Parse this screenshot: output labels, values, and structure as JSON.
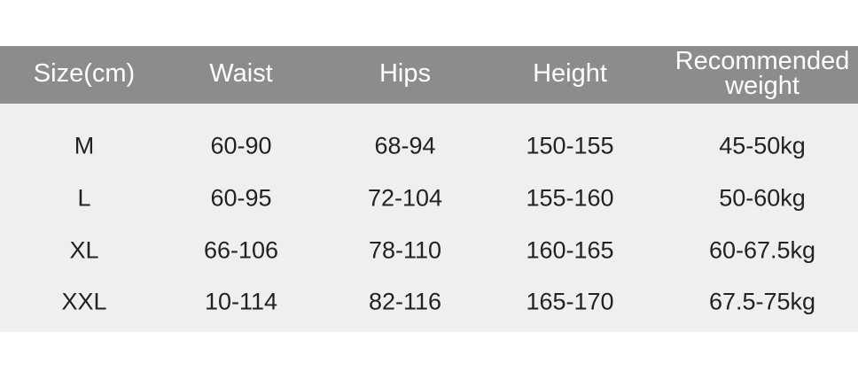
{
  "table": {
    "columns": [
      "Size(cm)",
      "Waist",
      "Hips",
      "Height",
      "Recommended weight"
    ],
    "rows": [
      [
        "M",
        "60-90",
        "68-94",
        "150-155",
        "45-50kg"
      ],
      [
        "L",
        "60-95",
        "72-104",
        "155-160",
        "50-60kg"
      ],
      [
        "XL",
        "66-106",
        "78-110",
        "160-165",
        "60-67.5kg"
      ],
      [
        "XXL",
        "10-114",
        "82-116",
        "165-170",
        "67.5-75kg"
      ]
    ]
  }
}
